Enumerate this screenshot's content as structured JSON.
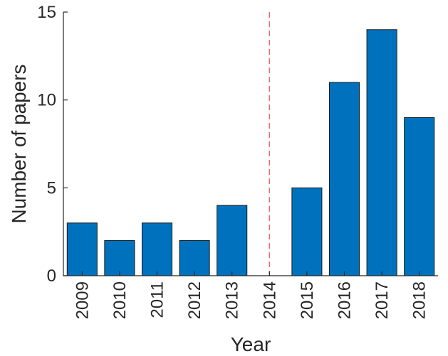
{
  "chart_data": {
    "type": "bar",
    "categories": [
      "2009",
      "2010",
      "2011",
      "2012",
      "2013",
      "2014",
      "2015",
      "2016",
      "2017",
      "2018"
    ],
    "values": [
      3,
      2,
      3,
      2,
      4,
      0,
      5,
      11,
      14,
      9
    ],
    "title": "",
    "xlabel": "Year",
    "ylabel": "Number of papers",
    "ylim": [
      0,
      15
    ],
    "yticks": [
      0,
      5,
      10,
      15
    ],
    "grid": false,
    "bar_color": "#0072bd",
    "reference_line": {
      "x": "2014",
      "style": "dashed",
      "color": "#ea6d6d"
    }
  }
}
